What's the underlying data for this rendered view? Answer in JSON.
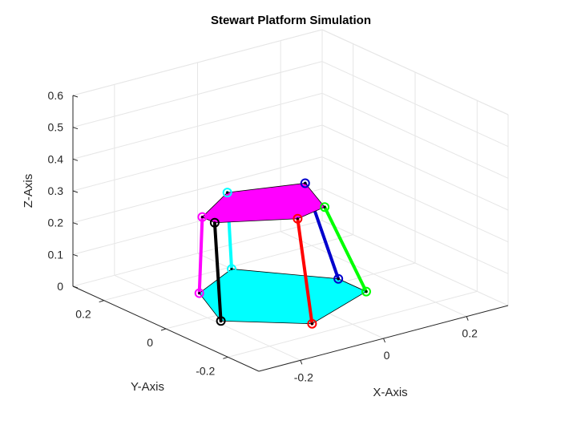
{
  "chart_data": {
    "type": "3d-line",
    "title": "Stewart Platform Simulation",
    "xlabel": "X-Axis",
    "ylabel": "Y-Axis",
    "zlabel": "Z-Axis",
    "xlim": [
      -0.3,
      0.3
    ],
    "ylim": [
      -0.3,
      0.3
    ],
    "zlim": [
      0,
      0.6
    ],
    "x_ticks": [
      -0.2,
      0,
      0.2
    ],
    "y_ticks": [
      -0.2,
      0,
      0.2
    ],
    "z_ticks": [
      0,
      0.1,
      0.2,
      0.3,
      0.4,
      0.5,
      0.6
    ],
    "x_tick_labels": [
      "-0.2",
      "0",
      "0.2"
    ],
    "y_tick_labels": [
      "-0.2",
      "0",
      "0.2"
    ],
    "z_tick_labels": [
      "0",
      "0.1",
      "0.2",
      "0.3",
      "0.4",
      "0.5",
      "0.6"
    ],
    "grid": true,
    "base_platform": {
      "color": "#00ffff",
      "vertices": [
        {
          "x": -0.13,
          "y": 0.12,
          "z": 0
        },
        {
          "x": -0.19,
          "y": -0.03,
          "z": 0
        },
        {
          "x": -0.06,
          "y": -0.15,
          "z": 0
        },
        {
          "x": 0.13,
          "y": -0.07,
          "z": 0
        },
        {
          "x": 0.13,
          "y": 0.02,
          "z": 0
        },
        {
          "x": 0.0,
          "y": 0.19,
          "z": 0
        }
      ]
    },
    "top_platform": {
      "color": "#ff00ff",
      "vertices": [
        {
          "x": -0.19,
          "y": 0.03,
          "z": 0.3
        },
        {
          "x": -0.19,
          "y": -0.01,
          "z": 0.3
        },
        {
          "x": -0.05,
          "y": -0.09,
          "z": 0.3
        },
        {
          "x": 0.03,
          "y": -0.07,
          "z": 0.3
        },
        {
          "x": 0.08,
          "y": 0.06,
          "z": 0.3
        },
        {
          "x": -0.07,
          "y": 0.11,
          "z": 0.3
        }
      ]
    },
    "legs": [
      {
        "color": "#ff0000",
        "base": {
          "x": -0.06,
          "y": -0.15,
          "z": 0
        },
        "top": {
          "x": -0.05,
          "y": -0.09,
          "z": 0.3
        }
      },
      {
        "color": "#00ff00",
        "base": {
          "x": 0.13,
          "y": -0.07,
          "z": 0
        },
        "top": {
          "x": 0.03,
          "y": -0.07,
          "z": 0.3
        }
      },
      {
        "color": "#0000cd",
        "base": {
          "x": 0.13,
          "y": 0.02,
          "z": 0
        },
        "top": {
          "x": 0.08,
          "y": 0.06,
          "z": 0.3
        }
      },
      {
        "color": "#00ffff",
        "base": {
          "x": 0.0,
          "y": 0.19,
          "z": 0
        },
        "top": {
          "x": -0.07,
          "y": 0.11,
          "z": 0.3
        }
      },
      {
        "color": "#ff00ff",
        "base": {
          "x": -0.13,
          "y": 0.12,
          "z": 0
        },
        "top": {
          "x": -0.19,
          "y": 0.03,
          "z": 0.3
        }
      },
      {
        "color": "#000000",
        "base": {
          "x": -0.19,
          "y": -0.03,
          "z": 0
        },
        "top": {
          "x": -0.19,
          "y": -0.01,
          "z": 0.3
        }
      }
    ]
  }
}
